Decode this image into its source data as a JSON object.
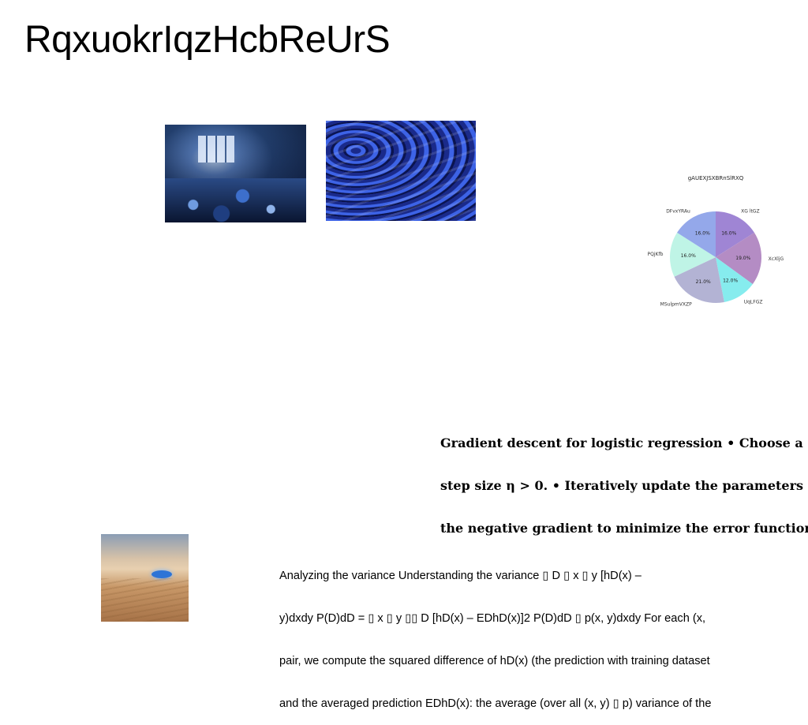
{
  "title": "RqxuokrIqzHcbReUrS",
  "images": [
    {
      "name": "abandoned-room-photo"
    },
    {
      "name": "blue-mushrooms-photo"
    },
    {
      "name": "desert-photo"
    }
  ],
  "chart_data": {
    "type": "pie",
    "title": "gAUEXJSXBRnSlRXQ",
    "slices": [
      {
        "label": "XG ltGZ",
        "value": 16.0,
        "color": "#9f85d4"
      },
      {
        "label": "XcXljG",
        "value": 19.0,
        "color": "#b48cc4"
      },
      {
        "label": "UqLFGZ",
        "value": 12.0,
        "color": "#86ecee"
      },
      {
        "label": "MSulpmVXZP",
        "value": 21.0,
        "color": "#b3b3d4"
      },
      {
        "label": "PQjKfb",
        "value": 16.0,
        "color": "#bff4e6"
      },
      {
        "label": "DFvxYRAu",
        "value": 16.0,
        "color": "#94a8ea"
      }
    ],
    "startangle": 90,
    "direction": "clockwise",
    "legend": "none"
  },
  "bold_paragraph": {
    "lines": [
      "Gradient descent for logistic regression • Choose a",
      "step size η > 0. • Iteratively update the parameters",
      "the negative gradient to minimize the error function"
    ]
  },
  "body_paragraph": {
    "lines": [
      "Analyzing the variance Understanding the variance ▯ D ▯ x ▯ y [hD(x) –",
      "y)dxdy P(D)dD = ▯ x ▯ y ▯▯ D [hD(x) – EDhD(x)]2 P(D)dD ▯ p(x, y)dxdy For each (x,",
      "pair, we compute the squared difference of hD(x) (the prediction with training dataset",
      "and the averaged prediction EDhD(x): the average (over all (x, y) ▯ p) variance of the"
    ]
  }
}
